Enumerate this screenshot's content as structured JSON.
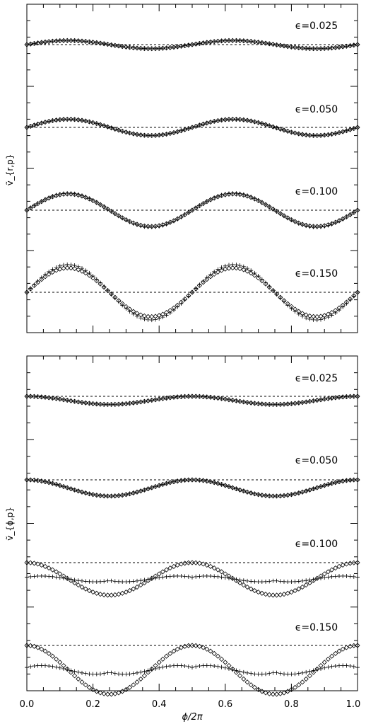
{
  "chart_data": [
    {
      "type": "scatter",
      "panel": "top",
      "ylabel": "ṽ_{r,p}",
      "xlim": [
        0,
        1
      ],
      "y_ticks_labeled": false,
      "grid": false,
      "markers": {
        "model": "open-diamond",
        "numerical": "plus"
      },
      "curves": [
        {
          "label": "ϵ=0.025",
          "epsilon": 0.025,
          "baseline": 0.0,
          "amp_model": 0.0125,
          "amp_plus": 0.0125,
          "phase": "sin"
        },
        {
          "label": "ϵ=0.050",
          "epsilon": 0.05,
          "baseline": 0.0,
          "amp_model": 0.025,
          "amp_plus": 0.025,
          "phase": "sin"
        },
        {
          "label": "ϵ=0.100",
          "epsilon": 0.1,
          "baseline": 0.0,
          "amp_model": 0.05,
          "amp_plus": 0.052,
          "phase": "sin"
        },
        {
          "label": "ϵ=0.150",
          "epsilon": 0.15,
          "baseline": 0.0,
          "amp_model": 0.075,
          "amp_plus": 0.085,
          "phase": "sin"
        }
      ]
    },
    {
      "type": "scatter",
      "panel": "bottom",
      "ylabel": "ṽ_{ϕ,p}",
      "xlabel": "ϕ/2π",
      "xlim": [
        0,
        1
      ],
      "xticks": [
        "0.0",
        "0.2",
        "0.4",
        "0.6",
        "0.8",
        "1.0"
      ],
      "y_ticks_labeled": false,
      "grid": false,
      "markers": {
        "model": "open-diamond",
        "numerical": "plus"
      },
      "curves": [
        {
          "label": "ϵ=0.025",
          "epsilon": 0.025,
          "baseline": 0.0,
          "amp_model": 0.0125,
          "amp_plus": 0.0125,
          "phase": "cos"
        },
        {
          "label": "ϵ=0.050",
          "epsilon": 0.05,
          "baseline": 0.0,
          "amp_model": 0.025,
          "amp_plus": 0.025,
          "phase": "cos"
        },
        {
          "label": "ϵ=0.100",
          "epsilon": 0.1,
          "baseline": 0.0,
          "amp_model": 0.05,
          "amp_plus": 0.05,
          "phase": "cos-cusp"
        },
        {
          "label": "ϵ=0.150",
          "epsilon": 0.15,
          "baseline": 0.0,
          "amp_model": 0.075,
          "amp_plus": 0.075,
          "phase": "cos-cusp"
        }
      ]
    }
  ]
}
